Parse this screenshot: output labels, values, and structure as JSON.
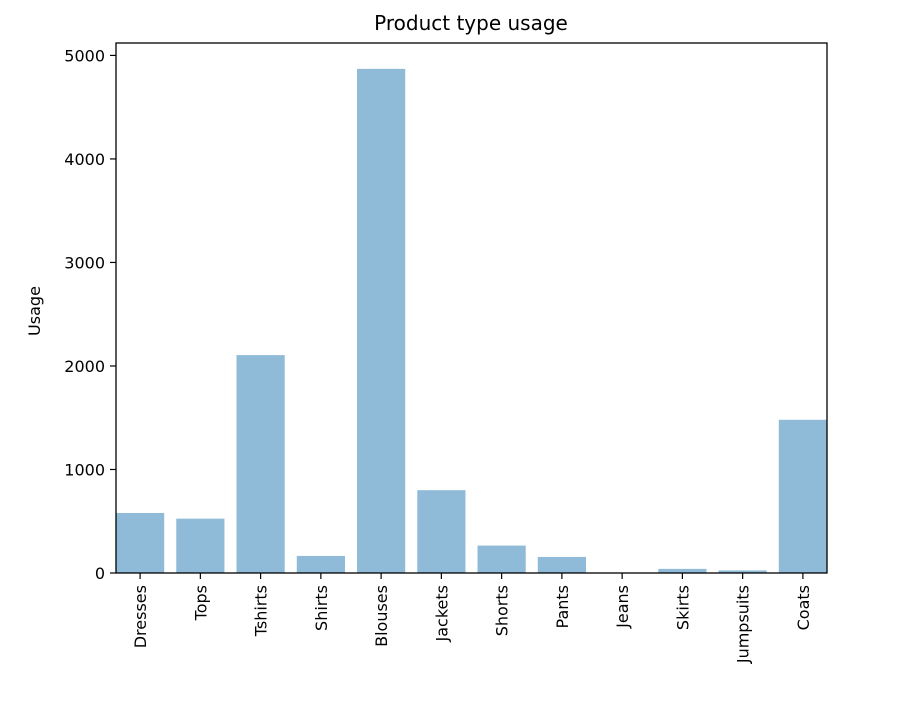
{
  "chart_data": {
    "type": "bar",
    "title": "Product type usage",
    "xlabel": "",
    "ylabel": "Usage",
    "categories": [
      "Dresses",
      "Tops",
      "Tshirts",
      "Shirts",
      "Blouses",
      "Jackets",
      "Shorts",
      "Pants",
      "Jeans",
      "Skirts",
      "Jumpsuits",
      "Coats"
    ],
    "values": [
      580,
      525,
      2105,
      165,
      4870,
      800,
      265,
      155,
      0,
      40,
      25,
      1480
    ],
    "ylim": [
      0,
      5120
    ],
    "yticks": [
      0,
      1000,
      2000,
      3000,
      4000,
      5000
    ],
    "grid": false,
    "colors": {
      "bar": "#8fbbd9",
      "axis": "#000000"
    }
  }
}
